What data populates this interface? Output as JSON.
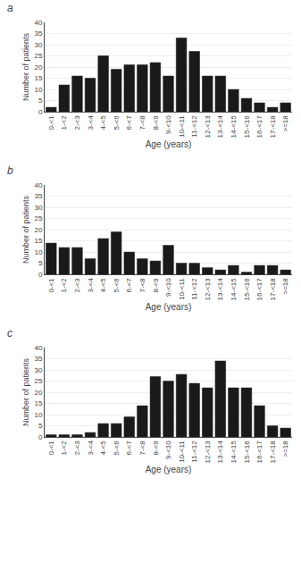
{
  "chart_data": [
    {
      "type": "bar",
      "title": "a",
      "categories": [
        "0-<1",
        "1-<2",
        "2-<3",
        "3-<4",
        "4-<5",
        "5-<6",
        "6-<7",
        "7-<8",
        "8-<9",
        "9-<10",
        "10-<11",
        "11-<12",
        "12-<13",
        "13-<14",
        "14-<15",
        "15-<16",
        "16-<17",
        "17-<18",
        ">=18"
      ],
      "values": [
        2,
        12,
        16,
        15,
        25,
        19,
        21,
        21,
        22,
        16,
        33,
        27,
        16,
        16,
        10,
        6,
        4,
        2,
        4
      ],
      "color": "#1a1a1a",
      "xlabel": "Age (years)",
      "ylabel": "Number of patients",
      "ylim": [
        0,
        40
      ],
      "yticks": [
        0,
        5,
        10,
        15,
        20,
        25,
        30,
        35,
        40
      ],
      "grid": true
    },
    {
      "type": "bar",
      "title": "b",
      "categories": [
        "0-<1",
        "1-<2",
        "2-<3",
        "3-<4",
        "4-<5",
        "5-<6",
        "6-<7",
        "7-<8",
        "8-<9",
        "9-<10",
        "10-<11",
        "11-<12",
        "12-<13",
        "13-<14",
        "14-<15",
        "15-<16",
        "16-<17",
        "17-<18",
        ">=18"
      ],
      "values": [
        14,
        12,
        12,
        7,
        16,
        19,
        10,
        7,
        6,
        13,
        5,
        5,
        3,
        2,
        4,
        1,
        4,
        4,
        2
      ],
      "color": "#1a1a1a",
      "xlabel": "Age (years)",
      "ylabel": "Number of patients",
      "ylim": [
        0,
        40
      ],
      "yticks": [
        0,
        5,
        10,
        15,
        20,
        25,
        30,
        35,
        40
      ],
      "grid": true
    },
    {
      "type": "bar",
      "title": "c",
      "categories": [
        "0-<1",
        "1-<2",
        "2-<3",
        "3-<4",
        "4-<5",
        "5-<6",
        "6-<7",
        "7-<8",
        "8-<9",
        "9-<10",
        "10-<11",
        "11-<12",
        "12-<13",
        "13-<14",
        "14-<15",
        "15-<16",
        "16-<17",
        "17-<18",
        ">=18"
      ],
      "values": [
        1,
        1,
        1,
        2,
        6,
        6,
        9,
        14,
        27,
        25,
        28,
        24,
        22,
        34,
        22,
        22,
        14,
        5,
        4
      ],
      "color": "#1a1a1a",
      "xlabel": "Age (years)",
      "ylabel": "Number of patients",
      "ylim": [
        0,
        40
      ],
      "yticks": [
        0,
        5,
        10,
        15,
        20,
        25,
        30,
        35,
        40
      ],
      "grid": true
    }
  ]
}
